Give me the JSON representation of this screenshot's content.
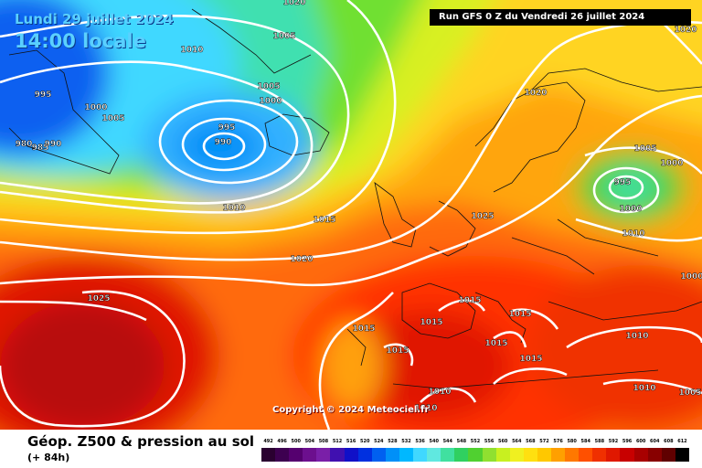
{
  "header": {
    "date": "Lundi 29 juillet 2024",
    "time": "14:00 locale",
    "run": "Run GFS 0 Z du Vendredi 26 juillet 2024"
  },
  "copyright": "Copyright © 2024 Meteociel.fr",
  "footer": {
    "title": "Géop. Z500 & pression au sol",
    "subtitle": "(+ 84h)"
  },
  "legend": {
    "values": [
      "492",
      "496",
      "500",
      "504",
      "508",
      "512",
      "516",
      "520",
      "524",
      "528",
      "532",
      "536",
      "540",
      "544",
      "548",
      "552",
      "556",
      "560",
      "564",
      "568",
      "572",
      "576",
      "580",
      "584",
      "588",
      "592",
      "596",
      "600",
      "604",
      "608",
      "612"
    ],
    "colors": [
      "#2a0030",
      "#3d0050",
      "#55006f",
      "#6c0f8e",
      "#7a1fa8",
      "#4010b0",
      "#1010c8",
      "#0030e0",
      "#0060f0",
      "#0090f8",
      "#00b8ff",
      "#40d8ff",
      "#60e8e0",
      "#40e0a0",
      "#30d060",
      "#50d030",
      "#90e030",
      "#c8f020",
      "#f0f020",
      "#ffe010",
      "#ffc800",
      "#ffa000",
      "#ff7800",
      "#ff5000",
      "#f03000",
      "#e01800",
      "#c80000",
      "#a80000",
      "#880000",
      "#600000",
      "#000000"
    ]
  },
  "isobars": [
    {
      "value": "1010",
      "pos": "North Atlantic"
    },
    {
      "value": "1005",
      "pos": "Iceland"
    },
    {
      "value": "995",
      "pos": "Iceland low"
    },
    {
      "value": "990",
      "pos": "Iceland low centre"
    },
    {
      "value": "1000",
      "pos": "Iceland"
    },
    {
      "value": "1005",
      "pos": "Greenland"
    },
    {
      "value": "1000",
      "pos": "Greenland"
    },
    {
      "value": "995",
      "pos": "Greenland"
    },
    {
      "value": "990",
      "pos": "Greenland west"
    },
    {
      "value": "985",
      "pos": "Greenland west"
    },
    {
      "value": "980",
      "pos": "Greenland west"
    },
    {
      "value": "1005",
      "pos": "north"
    },
    {
      "value": "1020",
      "pos": "top right"
    },
    {
      "value": "1020",
      "pos": "Scandinavia"
    },
    {
      "value": "1005",
      "pos": "Russia"
    },
    {
      "value": "1000",
      "pos": "Russia"
    },
    {
      "value": "995",
      "pos": "Russia low"
    },
    {
      "value": "1000",
      "pos": "Russia low"
    },
    {
      "value": "1010",
      "pos": "Russia"
    },
    {
      "value": "1010",
      "pos": "Atlantic"
    },
    {
      "value": "1015",
      "pos": "Atlantic"
    },
    {
      "value": "1025",
      "pos": "Alps"
    },
    {
      "value": "1020",
      "pos": "Atlantic"
    },
    {
      "value": "1025",
      "pos": "Azores high"
    },
    {
      "value": "1015",
      "pos": "France south"
    },
    {
      "value": "1015",
      "pos": "Iberia"
    },
    {
      "value": "1015",
      "pos": "Italy"
    },
    {
      "value": "1015",
      "pos": "Balkans"
    },
    {
      "value": "1015",
      "pos": "Mediterranean"
    },
    {
      "value": "1015",
      "pos": "Mediterranean east"
    },
    {
      "value": "1015",
      "pos": "Portugal"
    },
    {
      "value": "1010",
      "pos": "Spain"
    },
    {
      "value": "1010",
      "pos": "Turkey"
    },
    {
      "value": "1010",
      "pos": "North Africa"
    },
    {
      "value": "1010",
      "pos": "Algeria"
    },
    {
      "value": "1005",
      "pos": "Middle East"
    },
    {
      "value": "1000",
      "pos": "Iraq"
    },
    {
      "value": "1020",
      "pos": "top edge"
    }
  ]
}
